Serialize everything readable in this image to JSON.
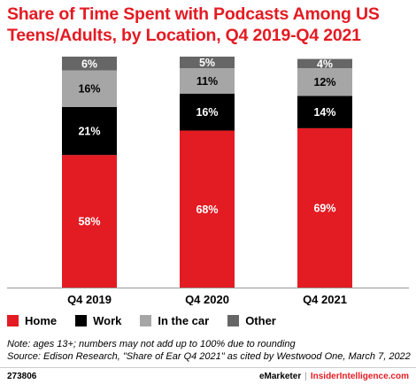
{
  "title": "Share of Time Spent with Podcasts Among US Teens/Adults, by Location, Q4 2019-Q4 2021",
  "chart_data": {
    "type": "bar",
    "stacked": true,
    "categories": [
      "Q4 2019",
      "Q4 2020",
      "Q4 2021"
    ],
    "series": [
      {
        "name": "Home",
        "color": "#e31b23",
        "values": [
          58,
          68,
          69
        ],
        "labels": [
          "58%",
          "68%",
          "69%"
        ]
      },
      {
        "name": "Work",
        "color": "#000000",
        "values": [
          21,
          16,
          14
        ],
        "labels": [
          "21%",
          "16%",
          "14%"
        ]
      },
      {
        "name": "In the car",
        "color": "#a6a6a6",
        "values": [
          16,
          11,
          12
        ],
        "labels": [
          "16%",
          "11%",
          "12%"
        ]
      },
      {
        "name": "Other",
        "color": "#666666",
        "values": [
          6,
          5,
          4
        ],
        "labels": [
          "6%",
          "5%",
          "4%"
        ]
      }
    ],
    "ylim": [
      0,
      100
    ],
    "grid": false,
    "legend_position": "bottom-left"
  },
  "notes": {
    "line1": "Note: ages 13+; numbers may not add up to 100% due to rounding",
    "line2": "Source: Edison Research, \"Share of Ear Q4 2021\" as cited by Westwood One, March 7, 2022"
  },
  "footer": {
    "chart_id": "273806",
    "brand1": "eMarketer",
    "separator": "|",
    "brand2": "InsiderIntelligence.com"
  }
}
